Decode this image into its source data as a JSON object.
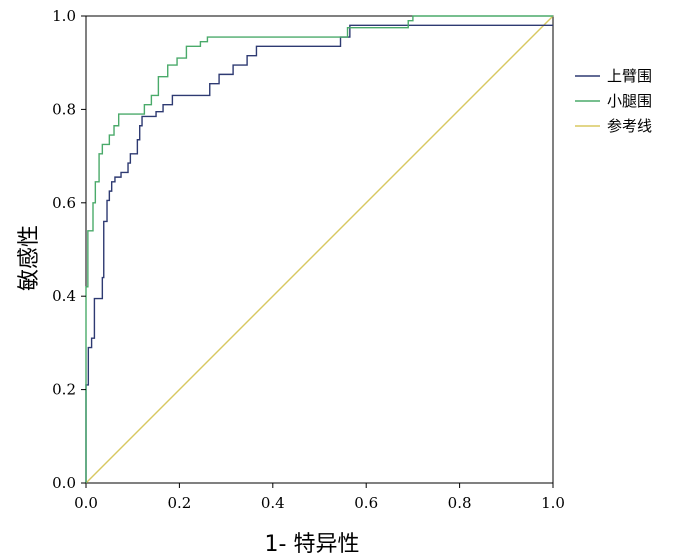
{
  "chart_data": {
    "type": "line",
    "xlabel": "1- 特异性",
    "ylabel": "敏感性",
    "xlim": [
      0,
      1
    ],
    "ylim": [
      0,
      1
    ],
    "x_ticks": [
      "0.0",
      "0.2",
      "0.4",
      "0.6",
      "0.8",
      "1.0"
    ],
    "y_ticks": [
      "0.0",
      "0.2",
      "0.4",
      "0.6",
      "0.8",
      "1.0"
    ],
    "grid": false,
    "legend_position": "right",
    "series": [
      {
        "name": "上臂围",
        "color": "#2e3a72",
        "points": [
          [
            0.0,
            0.0
          ],
          [
            0.0,
            0.21
          ],
          [
            0.005,
            0.21
          ],
          [
            0.005,
            0.29
          ],
          [
            0.012,
            0.29
          ],
          [
            0.012,
            0.31
          ],
          [
            0.018,
            0.31
          ],
          [
            0.018,
            0.395
          ],
          [
            0.035,
            0.395
          ],
          [
            0.035,
            0.44
          ],
          [
            0.038,
            0.44
          ],
          [
            0.038,
            0.56
          ],
          [
            0.045,
            0.56
          ],
          [
            0.045,
            0.605
          ],
          [
            0.05,
            0.605
          ],
          [
            0.05,
            0.625
          ],
          [
            0.055,
            0.625
          ],
          [
            0.055,
            0.645
          ],
          [
            0.062,
            0.645
          ],
          [
            0.062,
            0.655
          ],
          [
            0.075,
            0.655
          ],
          [
            0.075,
            0.665
          ],
          [
            0.09,
            0.665
          ],
          [
            0.09,
            0.685
          ],
          [
            0.095,
            0.685
          ],
          [
            0.095,
            0.705
          ],
          [
            0.11,
            0.705
          ],
          [
            0.11,
            0.735
          ],
          [
            0.115,
            0.735
          ],
          [
            0.115,
            0.765
          ],
          [
            0.12,
            0.765
          ],
          [
            0.12,
            0.785
          ],
          [
            0.15,
            0.785
          ],
          [
            0.15,
            0.795
          ],
          [
            0.165,
            0.795
          ],
          [
            0.165,
            0.81
          ],
          [
            0.185,
            0.81
          ],
          [
            0.185,
            0.83
          ],
          [
            0.265,
            0.83
          ],
          [
            0.265,
            0.855
          ],
          [
            0.285,
            0.855
          ],
          [
            0.285,
            0.875
          ],
          [
            0.315,
            0.875
          ],
          [
            0.315,
            0.895
          ],
          [
            0.345,
            0.895
          ],
          [
            0.345,
            0.915
          ],
          [
            0.365,
            0.915
          ],
          [
            0.365,
            0.935
          ],
          [
            0.545,
            0.935
          ],
          [
            0.545,
            0.955
          ],
          [
            0.565,
            0.955
          ],
          [
            0.565,
            0.98
          ],
          [
            1.0,
            0.98
          ]
        ]
      },
      {
        "name": "小腿围",
        "color": "#4aaa6a",
        "points": [
          [
            0.0,
            0.0
          ],
          [
            0.0,
            0.42
          ],
          [
            0.004,
            0.42
          ],
          [
            0.004,
            0.54
          ],
          [
            0.015,
            0.54
          ],
          [
            0.015,
            0.6
          ],
          [
            0.02,
            0.6
          ],
          [
            0.02,
            0.645
          ],
          [
            0.028,
            0.645
          ],
          [
            0.028,
            0.705
          ],
          [
            0.035,
            0.705
          ],
          [
            0.035,
            0.725
          ],
          [
            0.05,
            0.725
          ],
          [
            0.05,
            0.745
          ],
          [
            0.06,
            0.745
          ],
          [
            0.06,
            0.765
          ],
          [
            0.07,
            0.765
          ],
          [
            0.07,
            0.79
          ],
          [
            0.125,
            0.79
          ],
          [
            0.125,
            0.81
          ],
          [
            0.14,
            0.81
          ],
          [
            0.14,
            0.83
          ],
          [
            0.155,
            0.83
          ],
          [
            0.155,
            0.87
          ],
          [
            0.175,
            0.87
          ],
          [
            0.175,
            0.895
          ],
          [
            0.195,
            0.895
          ],
          [
            0.195,
            0.91
          ],
          [
            0.215,
            0.91
          ],
          [
            0.215,
            0.935
          ],
          [
            0.245,
            0.935
          ],
          [
            0.245,
            0.945
          ],
          [
            0.26,
            0.945
          ],
          [
            0.26,
            0.955
          ],
          [
            0.56,
            0.955
          ],
          [
            0.56,
            0.975
          ],
          [
            0.69,
            0.975
          ],
          [
            0.69,
            0.99
          ],
          [
            0.7,
            0.99
          ],
          [
            0.7,
            1.0
          ],
          [
            1.0,
            1.0
          ]
        ]
      },
      {
        "name": "参考线",
        "color": "#d8c860",
        "points": [
          [
            0.0,
            0.0
          ],
          [
            1.0,
            1.0
          ]
        ]
      }
    ]
  }
}
